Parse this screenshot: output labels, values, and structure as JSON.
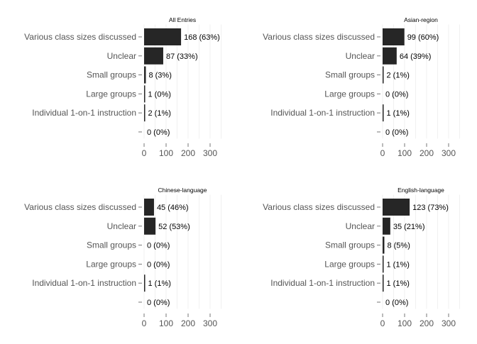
{
  "chart_data": [
    {
      "type": "bar",
      "orientation": "horizontal",
      "title": "All Entries",
      "categories": [
        "Various class sizes discussed",
        "Unclear",
        "Small groups",
        "Large groups",
        "Individual 1-on-1 instruction",
        ""
      ],
      "values": [
        168,
        87,
        8,
        1,
        2,
        0
      ],
      "value_labels": [
        "168 (63%)",
        "87 (33%)",
        "8 (3%)",
        "1 (0%)",
        "2 (1%)",
        "0 (0%)"
      ],
      "xticks": [
        "0",
        "100",
        "200",
        "300"
      ],
      "xlim": [
        0,
        350
      ],
      "bar_color": "#262626",
      "grid": true,
      "legend": "none"
    },
    {
      "type": "bar",
      "orientation": "horizontal",
      "title": "Asian-region",
      "categories": [
        "Various class sizes discussed",
        "Unclear",
        "Small groups",
        "Large groups",
        "Individual 1-on-1 instruction",
        ""
      ],
      "values": [
        99,
        64,
        2,
        0,
        1,
        0
      ],
      "value_labels": [
        "99 (60%)",
        "64 (39%)",
        "2 (1%)",
        "0 (0%)",
        "1 (1%)",
        "0 (0%)"
      ],
      "xticks": [
        "0",
        "100",
        "200",
        "300"
      ],
      "xlim": [
        0,
        350
      ],
      "bar_color": "#262626",
      "grid": true,
      "legend": "none"
    },
    {
      "type": "bar",
      "orientation": "horizontal",
      "title": "Chinese-language",
      "categories": [
        "Various class sizes discussed",
        "Unclear",
        "Small groups",
        "Large groups",
        "Individual 1-on-1 instruction",
        ""
      ],
      "values": [
        45,
        52,
        0,
        0,
        1,
        0
      ],
      "value_labels": [
        "45 (46%)",
        "52 (53%)",
        "0 (0%)",
        "0 (0%)",
        "1 (1%)",
        "0 (0%)"
      ],
      "xticks": [
        "0",
        "100",
        "200",
        "300"
      ],
      "xlim": [
        0,
        350
      ],
      "bar_color": "#262626",
      "grid": true,
      "legend": "none"
    },
    {
      "type": "bar",
      "orientation": "horizontal",
      "title": "English-language",
      "categories": [
        "Various class sizes discussed",
        "Unclear",
        "Small groups",
        "Large groups",
        "Individual 1-on-1 instruction",
        ""
      ],
      "values": [
        123,
        35,
        8,
        1,
        1,
        0
      ],
      "value_labels": [
        "123 (73%)",
        "35 (21%)",
        "8 (5%)",
        "1 (1%)",
        "1 (1%)",
        "0 (0%)"
      ],
      "xticks": [
        "0",
        "100",
        "200",
        "300"
      ],
      "xlim": [
        0,
        350
      ],
      "bar_color": "#262626",
      "grid": true,
      "legend": "none"
    }
  ]
}
